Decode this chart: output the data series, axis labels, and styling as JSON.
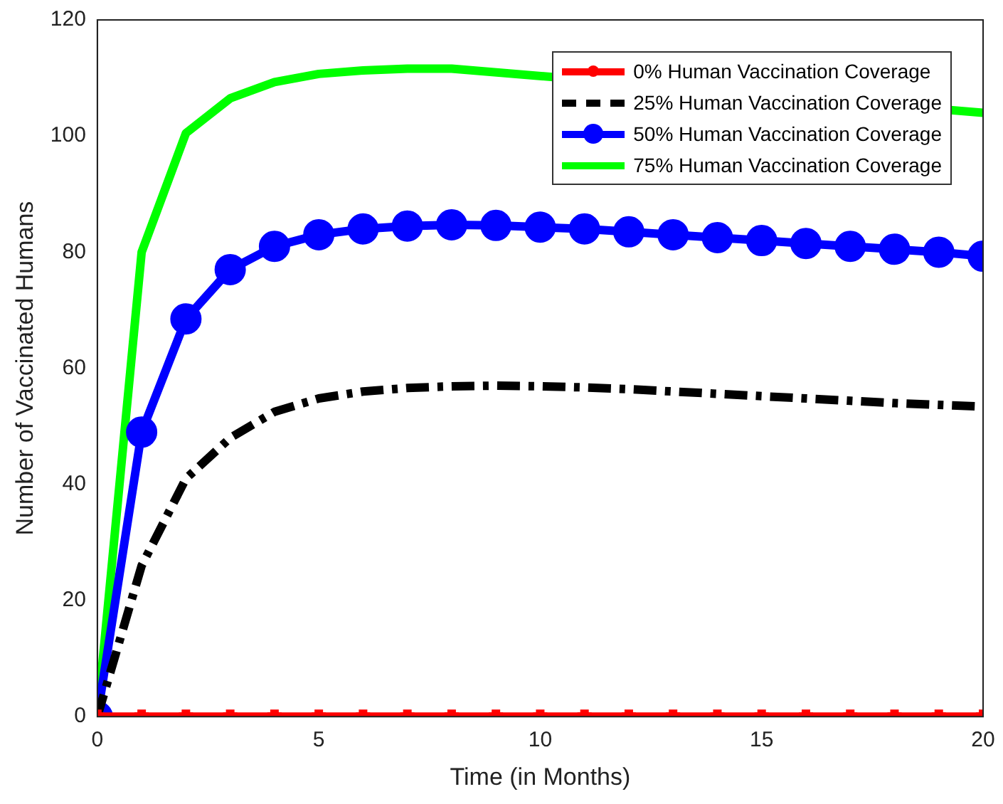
{
  "chart_data": {
    "type": "line",
    "xlabel": "Time (in Months)",
    "ylabel": "Number of Vaccinated Humans",
    "x": [
      0,
      1,
      2,
      3,
      4,
      5,
      6,
      7,
      8,
      9,
      10,
      11,
      12,
      13,
      14,
      15,
      16,
      17,
      18,
      19,
      20
    ],
    "xlim": [
      0,
      20
    ],
    "xticks": [
      0,
      5,
      10,
      15,
      20
    ],
    "ylim": [
      0,
      120
    ],
    "yticks": [
      0,
      20,
      40,
      60,
      80,
      100,
      120
    ],
    "grid": false,
    "legend": "top right",
    "series": [
      {
        "name": "0% Human Vaccination Coverage",
        "color": "#ff0000",
        "marker": "cross",
        "line_style": "solid",
        "values": [
          0,
          0,
          0,
          0,
          0,
          0,
          0,
          0,
          0,
          0,
          0,
          0,
          0,
          0,
          0,
          0,
          0,
          0,
          0,
          0,
          0
        ]
      },
      {
        "name": "25% Human Vaccination Coverage",
        "color": "#000000",
        "marker": "none",
        "line_style": "dashed",
        "values": [
          0,
          26,
          41,
          48,
          52.5,
          54.8,
          56,
          56.6,
          56.9,
          57,
          56.9,
          56.7,
          56.4,
          56,
          55.6,
          55.2,
          54.8,
          54.4,
          54,
          53.7,
          53.4
        ]
      },
      {
        "name": "50% Human Vaccination Coverage",
        "color": "#0000ff",
        "marker": "circle",
        "line_style": "solid",
        "values": [
          0,
          49,
          68.5,
          77,
          81,
          83,
          84,
          84.5,
          84.7,
          84.6,
          84.3,
          84,
          83.5,
          83,
          82.5,
          82,
          81.5,
          81,
          80.5,
          80,
          79.3
        ]
      },
      {
        "name": "75% Human Vaccination Coverage",
        "color": "#00ff00",
        "marker": "none",
        "line_style": "solid",
        "values": [
          0,
          80,
          100.5,
          106.5,
          109.3,
          110.7,
          111.3,
          111.6,
          111.6,
          null,
          null,
          null,
          null,
          null,
          null,
          null,
          null,
          null,
          null,
          null,
          104
        ]
      }
    ]
  }
}
